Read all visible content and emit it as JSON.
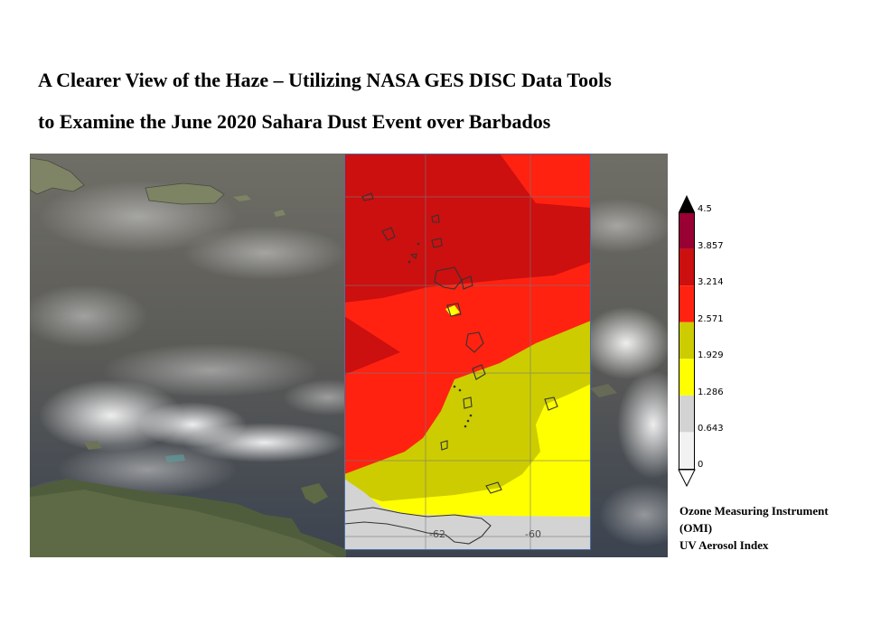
{
  "title": {
    "line1": "A Clearer View of the Haze – Utilizing NASA GES DISC Data Tools",
    "line2": "to Examine the June 2020 Sahara Dust Event over Barbados"
  },
  "map": {
    "grid_longitude_labels": [
      "-62",
      "-60"
    ]
  },
  "colorbar": {
    "ticks": [
      "4.5",
      "3.857",
      "3.214",
      "2.571",
      "1.929",
      "1.286",
      "0.643",
      "0"
    ],
    "bands": [
      {
        "from": 3.857,
        "to": 4.5,
        "color": "#990033"
      },
      {
        "from": 3.214,
        "to": 3.857,
        "color": "#cc0f0f"
      },
      {
        "from": 2.571,
        "to": 3.214,
        "color": "#ff2211"
      },
      {
        "from": 1.929,
        "to": 2.571,
        "color": "#cccc00"
      },
      {
        "from": 1.286,
        "to": 1.929,
        "color": "#ffff00"
      },
      {
        "from": 0.643,
        "to": 1.286,
        "color": "#d3d3d3"
      },
      {
        "from": 0,
        "to": 0.643,
        "color": "#f2f2f2"
      }
    ]
  },
  "legend": {
    "line1": "Ozone Measuring Instrument",
    "line2": "(OMI)",
    "line3": "UV Aerosol Index"
  }
}
